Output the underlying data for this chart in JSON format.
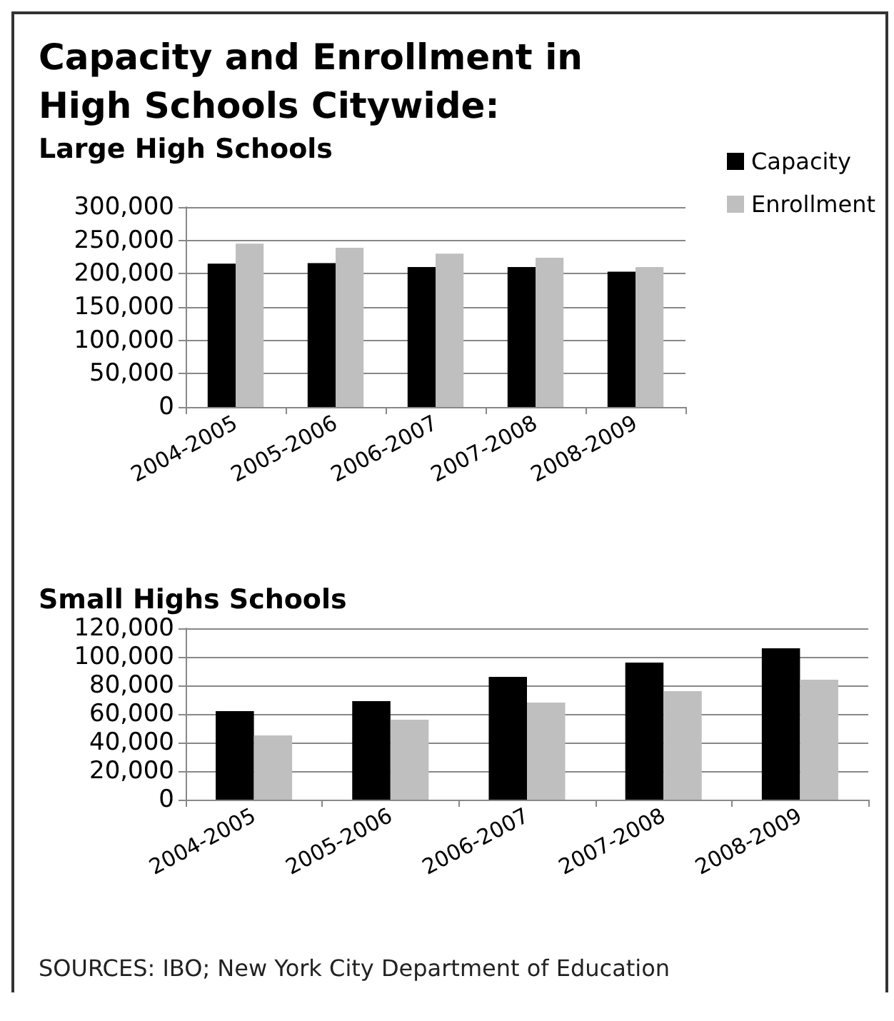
{
  "chart_data": [
    {
      "type": "bar",
      "title": "Capacity and Enrollment in High Schools Citywide:",
      "subtitle": "Large High Schools",
      "categories": [
        "2004-2005",
        "2005-2006",
        "2006-2007",
        "2007-2008",
        "2008-2009"
      ],
      "series": [
        {
          "name": "Capacity",
          "color": "#000000",
          "values": [
            215000,
            216000,
            210000,
            210000,
            203000
          ]
        },
        {
          "name": "Enrollment",
          "color": "#bfbfbf",
          "values": [
            245000,
            239000,
            230000,
            224000,
            210000
          ]
        }
      ],
      "ylim": [
        0,
        300000
      ],
      "yticks": [
        0,
        {
          "value": 50000,
          "label": "50,000"
        },
        {
          "value": 100000,
          "label": "100,000"
        },
        {
          "value": 150000,
          "label": "150,000"
        },
        {
          "value": 200000,
          "label": "200,000"
        },
        {
          "value": 250000,
          "label": "250,000"
        },
        {
          "value": 300000,
          "label": "300,000"
        }
      ],
      "grid": "y",
      "legend": "top right"
    },
    {
      "type": "bar",
      "title": "Small Highs Schools",
      "categories": [
        "2004-2005",
        "2005-2006",
        "2006-2007",
        "2007-2008",
        "2008-2009"
      ],
      "series": [
        {
          "color": "#000000",
          "values": [
            62000,
            69000,
            86000,
            96000,
            106000
          ]
        },
        {
          "color": "#bfbfbf",
          "values": [
            45000,
            56000,
            68000,
            76000,
            84000
          ]
        }
      ],
      "ylim": [
        0,
        120000
      ],
      "yticks": [
        0,
        {
          "value": 20000,
          "label": "20,000"
        },
        {
          "value": 40000,
          "label": "40,000"
        },
        {
          "value": 60000,
          "label": "60,000"
        },
        {
          "value": 80000,
          "label": "80,000"
        },
        {
          "value": 100000,
          "label": "100,000"
        },
        {
          "value": 120000,
          "label": "120,000"
        }
      ],
      "grid": "y",
      "legend": false,
      "annotations": [
        "SOURCES: IBO; New York City Department of Education"
      ]
    }
  ]
}
